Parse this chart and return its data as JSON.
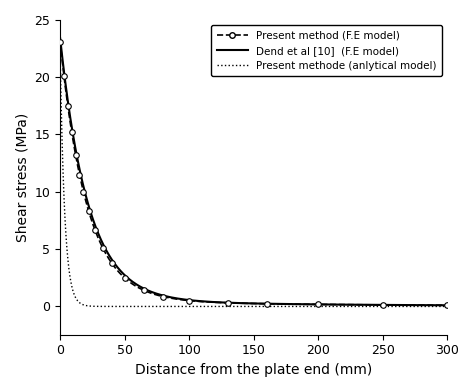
{
  "title": "",
  "xlabel": "Distance from the plate end (mm)",
  "ylabel": "Shear stress (MPa)",
  "xlim": [
    0,
    300
  ],
  "ylim": [
    -2.5,
    25
  ],
  "yticks": [
    0,
    5,
    10,
    15,
    20,
    25
  ],
  "xticks": [
    0,
    50,
    100,
    150,
    200,
    250,
    300
  ],
  "legend": [
    "Present method (F.E model)",
    "Dend et al [10]  (F.E model)",
    "Present methode (anlytical model)"
  ],
  "background_color": "#ffffff",
  "fe1_scale": 22.5,
  "fe1_decay": 0.048,
  "fe2_scale": 22.8,
  "fe2_decay": 0.046,
  "anal_peak": 22.0,
  "anal_fast_decay": 0.28,
  "anal_flat": -0.03,
  "x_markers": [
    0,
    3,
    6,
    9,
    12,
    15,
    18,
    22,
    27,
    33,
    40,
    50,
    65,
    80,
    100,
    130,
    160,
    200,
    250,
    300
  ]
}
